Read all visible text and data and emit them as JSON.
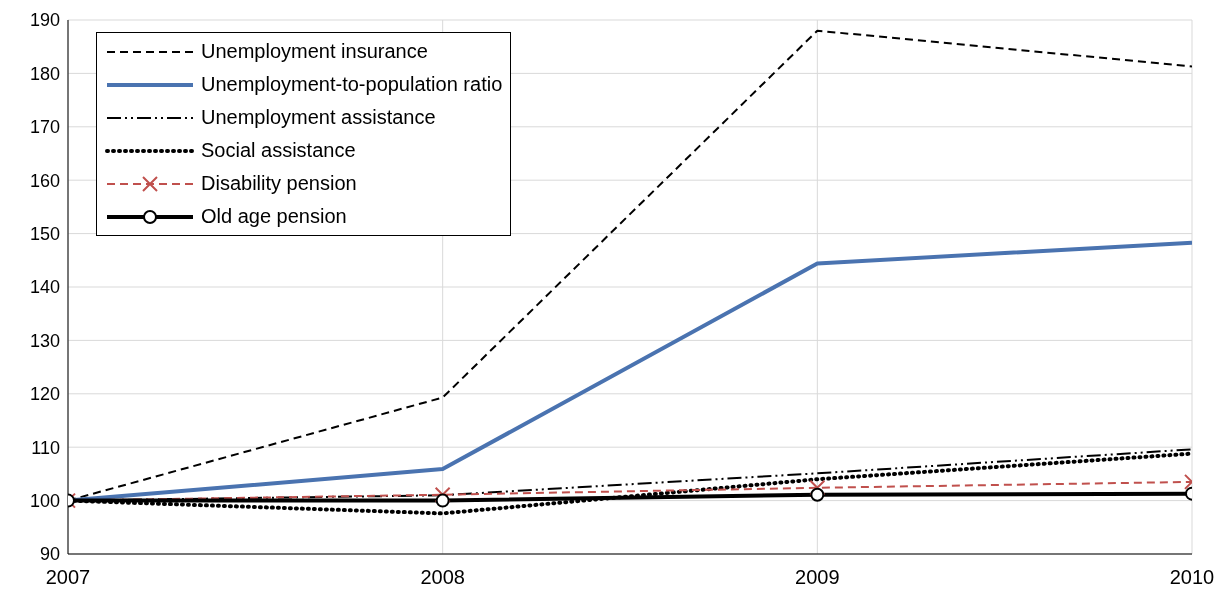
{
  "chart_data": {
    "type": "line",
    "x": [
      2007,
      2008,
      2009,
      2010
    ],
    "xlim": [
      2007,
      2010
    ],
    "xticks": [
      2007,
      2008,
      2009,
      2010
    ],
    "ylim": [
      90,
      190
    ],
    "yticks": [
      90,
      100,
      110,
      120,
      130,
      140,
      150,
      160,
      170,
      180,
      190
    ],
    "grid": true,
    "legend": "top left",
    "series": [
      {
        "name": "Unemployment insurance",
        "color": "#000000",
        "line_style": "dashed",
        "marker": "none",
        "values": [
          100,
          119.3,
          188,
          181.3
        ]
      },
      {
        "name": "Unemployment-to-population ratio",
        "color": "#4a73b0",
        "line_style": "solid",
        "marker": "none",
        "values": [
          100,
          105.9,
          144.4,
          148.3
        ]
      },
      {
        "name": "Unemployment assistance",
        "color": "#000000",
        "line_style": "dashdot",
        "marker": "none",
        "values": [
          100,
          101,
          105.1,
          109.6
        ]
      },
      {
        "name": "Social assistance",
        "color": "#000000",
        "line_style": "dotted",
        "marker": "none",
        "values": [
          100,
          97.6,
          104,
          108.8
        ]
      },
      {
        "name": "Disability pension",
        "color": "#c0504d",
        "line_style": "dashed",
        "marker": "cross",
        "values": [
          100,
          101.1,
          102.4,
          103.5
        ]
      },
      {
        "name": "Old age pension",
        "color": "#000000",
        "line_style": "solid",
        "marker": "circle",
        "values": [
          100,
          100,
          101.1,
          101.3
        ]
      }
    ]
  }
}
